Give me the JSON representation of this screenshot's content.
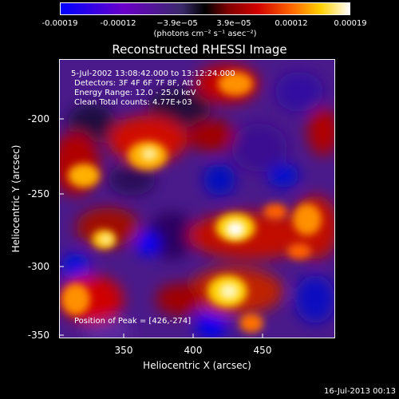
{
  "colorbar": {
    "ticks": [
      "-0.00019",
      "-0.00012",
      "−3.9e−05",
      "3.9e−05",
      "0.00012",
      "0.00019"
    ],
    "units": "(photons cm⁻² s⁻¹ asec⁻²)"
  },
  "title": "Reconstructed RHESSI Image",
  "info": {
    "time_range": "5-Jul-2002 13:08:42.000 to 13:12:24.000",
    "detectors": "Detectors: 3F 4F 6F 7F 8F, Att 0",
    "energy_range": "Energy Range: 12.0 - 25.0 keV",
    "clean_counts": "Clean    Total counts: 4.77E+03",
    "peak": "Position of Peak = [426,-274]"
  },
  "axes": {
    "xlabel": "Heliocentric X (arcsec)",
    "ylabel": "Heliocentric Y (arcsec)",
    "xticks": [
      "350",
      "400",
      "450"
    ],
    "yticks": [
      "-200",
      "-250",
      "-300",
      "-350"
    ]
  },
  "date_stamp": "16-Jul-2013 00:13"
}
